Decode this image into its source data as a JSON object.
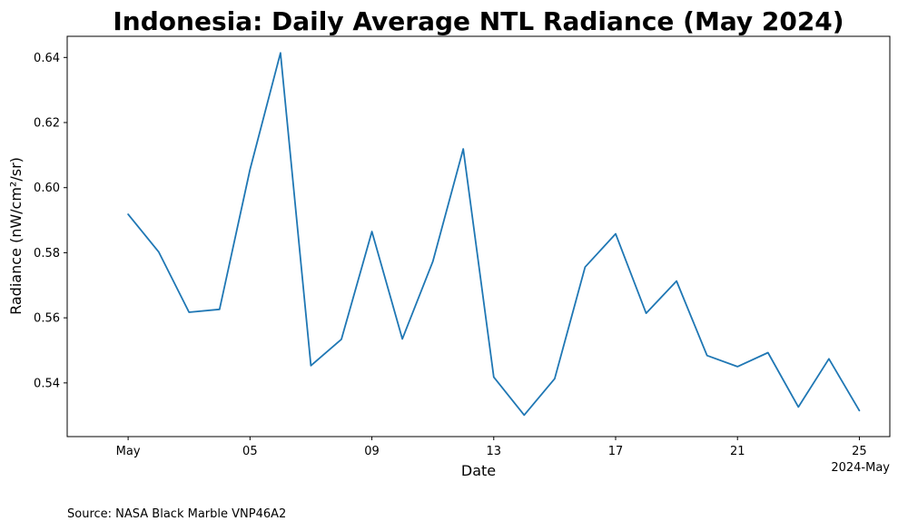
{
  "chart_data": {
    "type": "line",
    "title": "Indonesia: Daily Average NTL Radiance (May 2024)",
    "xlabel": "Date",
    "ylabel": "Radiance (nW/cm²/sr)",
    "x_offset_label": "2024-May",
    "grid": false,
    "series_color": "#1f77b4",
    "x": [
      "2024-05-01",
      "2024-05-02",
      "2024-05-03",
      "2024-05-04",
      "2024-05-05",
      "2024-05-06",
      "2024-05-07",
      "2024-05-08",
      "2024-05-09",
      "2024-05-10",
      "2024-05-11",
      "2024-05-12",
      "2024-05-13",
      "2024-05-14",
      "2024-05-15",
      "2024-05-16",
      "2024-05-17",
      "2024-05-18",
      "2024-05-19",
      "2024-05-20",
      "2024-05-21",
      "2024-05-22",
      "2024-05-23",
      "2024-05-24",
      "2024-05-25"
    ],
    "series": [
      {
        "values": [
          0.5918,
          0.5803,
          0.5617,
          0.5626,
          0.6055,
          0.6414,
          0.5453,
          0.5534,
          0.5865,
          0.5535,
          0.5773,
          0.6119,
          0.5418,
          0.5301,
          0.5413,
          0.5756,
          0.5858,
          0.5614,
          0.5713,
          0.5484,
          0.545,
          0.5493,
          0.5326,
          0.5474,
          0.5315
        ]
      }
    ],
    "xlim": [
      "2024-04-29",
      "2024-05-26"
    ],
    "ylim": [
      0.5235,
      0.6465
    ],
    "x_ticks": [
      {
        "date": "2024-05-01",
        "label": "May"
      },
      {
        "date": "2024-05-05",
        "label": "05"
      },
      {
        "date": "2024-05-09",
        "label": "09"
      },
      {
        "date": "2024-05-13",
        "label": "13"
      },
      {
        "date": "2024-05-17",
        "label": "17"
      },
      {
        "date": "2024-05-21",
        "label": "21"
      },
      {
        "date": "2024-05-25",
        "label": "25"
      }
    ],
    "y_ticks": [
      0.54,
      0.56,
      0.58,
      0.6,
      0.62,
      0.64
    ],
    "y_tick_labels": [
      "0.54",
      "0.56",
      "0.58",
      "0.60",
      "0.62",
      "0.64"
    ]
  },
  "source_note": "Source: NASA Black Marble VNP46A2"
}
